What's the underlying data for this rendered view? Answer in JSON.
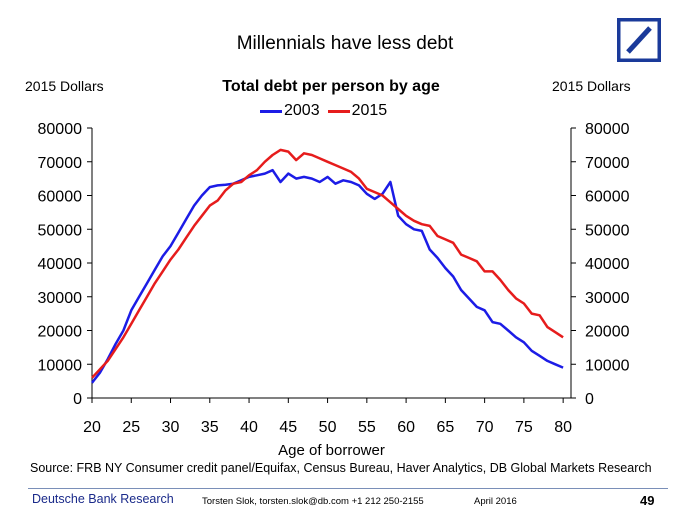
{
  "slide": {
    "title": "Millennials have less debt",
    "left_unit": "2015 Dollars",
    "right_unit": "2015 Dollars",
    "source": "Source: FRB NY Consumer credit panel/Equifax, Census Bureau, Haver Analytics, DB Global Markets Research"
  },
  "footer": {
    "brand": "Deutsche Bank Research",
    "contact": "Torsten Slok, torsten.slok@db.com  +1 212 250-2155",
    "date": "April 2016",
    "page": "49"
  },
  "colors": {
    "s2003": "#1c1ce6",
    "s2015": "#e61c1c",
    "logo": "#1a3a9a"
  },
  "chart_data": {
    "type": "line",
    "title": "Total debt per person by age",
    "xlabel": "Age of borrower",
    "ylabel": "2015 Dollars",
    "xlim": [
      20,
      81
    ],
    "ylim": [
      0,
      80000
    ],
    "xticks": [
      20,
      25,
      30,
      35,
      40,
      45,
      50,
      55,
      60,
      65,
      70,
      75,
      80
    ],
    "yticks": [
      0,
      10000,
      20000,
      30000,
      40000,
      50000,
      60000,
      70000,
      80000
    ],
    "legend": "top-center",
    "series": [
      {
        "name": "2003",
        "x": [
          20,
          21,
          22,
          23,
          24,
          25,
          26,
          27,
          28,
          29,
          30,
          31,
          32,
          33,
          34,
          35,
          36,
          37,
          38,
          39,
          40,
          41,
          42,
          43,
          44,
          45,
          46,
          47,
          48,
          49,
          50,
          51,
          52,
          53,
          54,
          55,
          56,
          57,
          58,
          59,
          60,
          61,
          62,
          63,
          64,
          65,
          66,
          67,
          68,
          69,
          70,
          71,
          72,
          73,
          74,
          75,
          76,
          77,
          78,
          79,
          80
        ],
        "y": [
          4500,
          7500,
          11500,
          16000,
          20000,
          26000,
          30000,
          34000,
          38000,
          42000,
          45000,
          49000,
          53000,
          57000,
          60000,
          62500,
          63000,
          63200,
          63500,
          64500,
          65500,
          66000,
          66500,
          67500,
          64000,
          66500,
          65000,
          65500,
          65000,
          64000,
          65500,
          63500,
          64500,
          64000,
          63000,
          60500,
          59000,
          60500,
          64000,
          54000,
          51500,
          50000,
          49500,
          44000,
          41500,
          38500,
          36000,
          32000,
          29500,
          27000,
          26000,
          22500,
          22000,
          20000,
          18000,
          16500,
          14000,
          12500,
          11000,
          10000,
          9000
        ]
      },
      {
        "name": "2015",
        "x": [
          20,
          21,
          22,
          23,
          24,
          25,
          26,
          27,
          28,
          29,
          30,
          31,
          32,
          33,
          34,
          35,
          36,
          37,
          38,
          39,
          40,
          41,
          42,
          43,
          44,
          45,
          46,
          47,
          48,
          49,
          50,
          51,
          52,
          53,
          54,
          55,
          56,
          57,
          58,
          59,
          60,
          61,
          62,
          63,
          64,
          65,
          66,
          67,
          68,
          69,
          70,
          71,
          72,
          73,
          74,
          75,
          76,
          77,
          78,
          79,
          80
        ],
        "y": [
          6000,
          8500,
          11000,
          14500,
          18000,
          22000,
          26000,
          30000,
          34000,
          37500,
          41000,
          44000,
          47500,
          51000,
          54000,
          57000,
          58500,
          61500,
          63500,
          64000,
          66000,
          67500,
          70000,
          72000,
          73500,
          73000,
          70500,
          72500,
          72000,
          71000,
          70000,
          69000,
          68000,
          67000,
          65000,
          62000,
          61000,
          60000,
          58000,
          56000,
          54000,
          52500,
          51500,
          51000,
          48000,
          47000,
          46000,
          42500,
          41500,
          40500,
          37500,
          37500,
          35000,
          32000,
          29500,
          28000,
          25000,
          24500,
          21000,
          19500,
          18000
        ]
      }
    ]
  }
}
